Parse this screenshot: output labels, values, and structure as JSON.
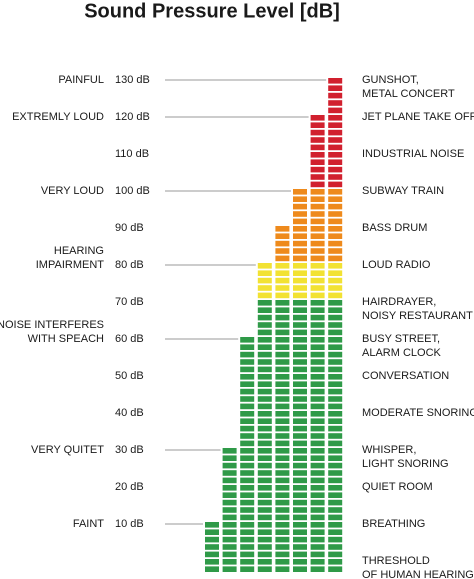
{
  "chart_data": {
    "type": "bar",
    "title": "Sound Pressure Level [dB]",
    "ylim": [
      0,
      130
    ],
    "yticks": [
      {
        "value": 130,
        "label": "130 dB"
      },
      {
        "value": 120,
        "label": "120 dB"
      },
      {
        "value": 110,
        "label": "110 dB"
      },
      {
        "value": 100,
        "label": "100 dB"
      },
      {
        "value": 90,
        "label": "90 dB"
      },
      {
        "value": 80,
        "label": "80 dB"
      },
      {
        "value": 70,
        "label": "70 dB"
      },
      {
        "value": 60,
        "label": "60 dB"
      },
      {
        "value": 50,
        "label": "50 dB"
      },
      {
        "value": 40,
        "label": "40 dB"
      },
      {
        "value": 30,
        "label": "30 dB"
      },
      {
        "value": 20,
        "label": "20 dB"
      },
      {
        "value": 10,
        "label": "10 dB"
      }
    ],
    "values": [
      10,
      30,
      60,
      80,
      90,
      100,
      120,
      130
    ],
    "color_bands": [
      {
        "from": 0,
        "to": 70,
        "color": "#2f9a48"
      },
      {
        "from": 70,
        "to": 80,
        "color": "#f2e233"
      },
      {
        "from": 80,
        "to": 100,
        "color": "#ee8a1c"
      },
      {
        "from": 100,
        "to": 130,
        "color": "#d1202e"
      }
    ],
    "left_labels": [
      {
        "value": 130,
        "lines": [
          "PAINFUL"
        ]
      },
      {
        "value": 120,
        "lines": [
          "EXTREMLY LOUD"
        ]
      },
      {
        "value": 100,
        "lines": [
          "VERY LOUD"
        ]
      },
      {
        "value": 80,
        "lines": [
          "HEARING",
          "IMPAIRMENT"
        ]
      },
      {
        "value": 60,
        "lines": [
          "NOISE INTERFERES",
          "WITH SPEACH"
        ]
      },
      {
        "value": 30,
        "lines": [
          "VERY QUITET"
        ]
      },
      {
        "value": 10,
        "lines": [
          "FAINT"
        ]
      }
    ],
    "right_labels": [
      {
        "value": 130,
        "lines": [
          "GUNSHOT,",
          "METAL CONCERT"
        ]
      },
      {
        "value": 120,
        "lines": [
          "JET PLANE TAKE OFF"
        ]
      },
      {
        "value": 110,
        "lines": [
          "INDUSTRIAL NOISE"
        ]
      },
      {
        "value": 100,
        "lines": [
          "SUBWAY TRAIN"
        ]
      },
      {
        "value": 90,
        "lines": [
          "BASS DRUM"
        ]
      },
      {
        "value": 80,
        "lines": [
          "LOUD RADIO"
        ]
      },
      {
        "value": 70,
        "lines": [
          "HAIRDRAYER,",
          "NOISY RESTAURANT"
        ]
      },
      {
        "value": 60,
        "lines": [
          "BUSY STREET,",
          "ALARM CLOCK"
        ]
      },
      {
        "value": 50,
        "lines": [
          "CONVERSATION"
        ]
      },
      {
        "value": 40,
        "lines": [
          "MODERATE SNORING"
        ]
      },
      {
        "value": 30,
        "lines": [
          "WHISPER,",
          "LIGHT SNORING"
        ]
      },
      {
        "value": 20,
        "lines": [
          "QUIET ROOM"
        ]
      },
      {
        "value": 10,
        "lines": [
          "BREATHING"
        ]
      },
      {
        "value": 0,
        "lines": [
          "THRESHOLD",
          "OF HUMAN HEARING"
        ]
      }
    ]
  }
}
